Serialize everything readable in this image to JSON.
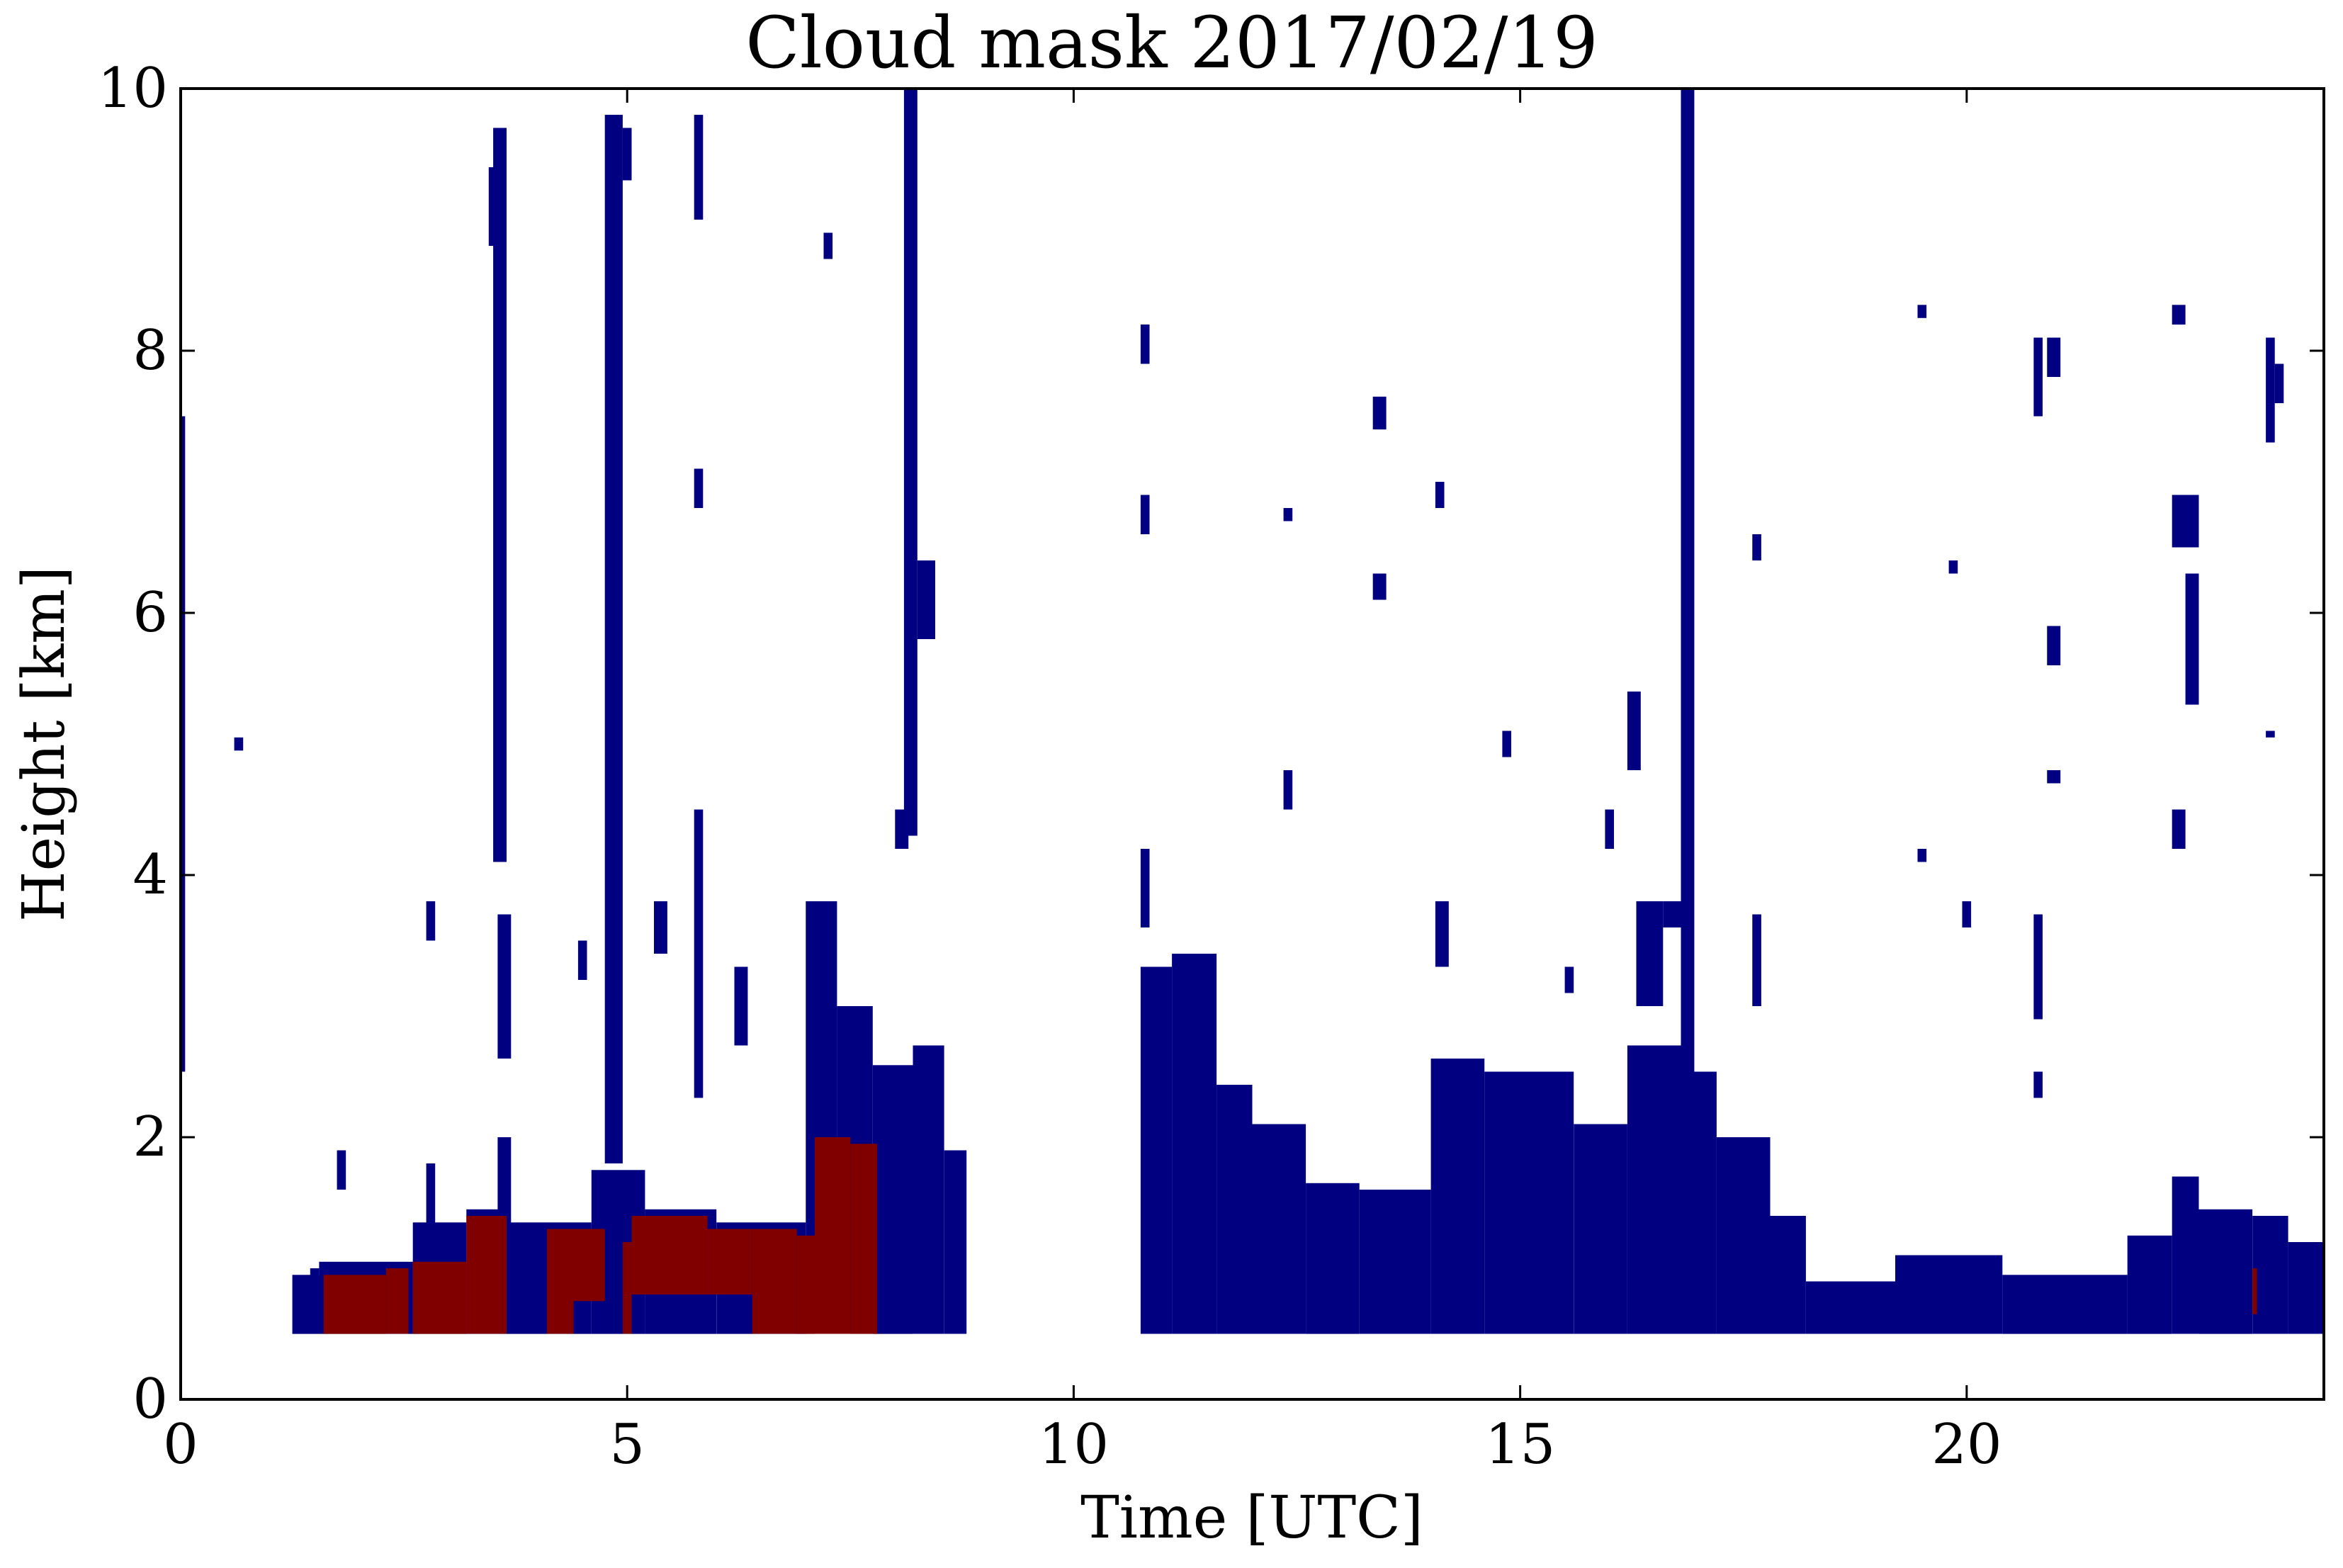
{
  "chart_data": {
    "type": "heatmap",
    "title": "Cloud mask 2017/02/19",
    "xlabel": "Time [UTC]",
    "ylabel": "Height [km]",
    "xlim": [
      0,
      24
    ],
    "ylim": [
      0,
      10
    ],
    "xticks": [
      0,
      5,
      10,
      15,
      20
    ],
    "yticks": [
      0,
      2,
      4,
      6,
      8,
      10
    ],
    "grid": false,
    "colors": {
      "ice_cloud": "#000080",
      "liquid_cloud": "#800000"
    },
    "series": [
      {
        "color_key": "ice_cloud",
        "segments": [
          [
            1.25,
            1.55,
            0.5,
            0.95
          ],
          [
            1.55,
            2.6,
            0.5,
            1.05
          ],
          [
            2.6,
            3.2,
            0.5,
            1.35
          ],
          [
            3.2,
            3.6,
            0.5,
            1.45
          ],
          [
            3.6,
            4.6,
            0.5,
            1.35
          ],
          [
            4.6,
            5.2,
            0.5,
            1.75
          ],
          [
            5.2,
            6.0,
            0.5,
            1.45
          ],
          [
            6.0,
            7.0,
            0.5,
            1.35
          ],
          [
            7.0,
            7.35,
            0.5,
            3.8
          ],
          [
            7.35,
            7.75,
            0.5,
            3.0
          ],
          [
            7.75,
            8.2,
            0.5,
            2.55
          ],
          [
            8.2,
            8.55,
            0.5,
            2.7
          ],
          [
            8.55,
            8.8,
            0.5,
            1.9
          ],
          [
            10.75,
            11.1,
            0.5,
            3.3
          ],
          [
            11.1,
            11.6,
            0.5,
            3.4
          ],
          [
            11.6,
            12.0,
            0.5,
            2.4
          ],
          [
            12.0,
            12.6,
            0.5,
            2.1
          ],
          [
            12.6,
            13.2,
            0.5,
            1.65
          ],
          [
            13.2,
            14.0,
            0.5,
            1.6
          ],
          [
            14.0,
            14.6,
            0.5,
            2.6
          ],
          [
            14.6,
            15.6,
            0.5,
            2.5
          ],
          [
            15.6,
            16.2,
            0.5,
            2.1
          ],
          [
            16.2,
            16.8,
            0.5,
            2.7
          ],
          [
            16.8,
            17.2,
            0.5,
            2.5
          ],
          [
            17.2,
            17.8,
            0.5,
            2.0
          ],
          [
            17.8,
            18.2,
            0.5,
            1.4
          ],
          [
            18.2,
            19.2,
            0.5,
            0.9
          ],
          [
            19.2,
            20.4,
            0.5,
            1.1
          ],
          [
            20.4,
            21.8,
            0.5,
            0.95
          ],
          [
            21.8,
            22.3,
            0.5,
            1.25
          ],
          [
            22.3,
            22.6,
            0.5,
            1.7
          ],
          [
            22.6,
            23.2,
            0.5,
            1.45
          ],
          [
            23.2,
            23.6,
            0.5,
            1.4
          ],
          [
            23.6,
            24.0,
            0.5,
            1.2
          ],
          [
            3.5,
            3.65,
            4.1,
            9.7
          ],
          [
            4.75,
            4.95,
            1.8,
            9.8
          ],
          [
            4.95,
            5.05,
            9.3,
            9.7
          ],
          [
            8.1,
            8.25,
            4.3,
            10.0
          ],
          [
            8.25,
            8.45,
            5.8,
            6.4
          ],
          [
            8.0,
            8.15,
            4.2,
            4.5
          ],
          [
            16.8,
            16.95,
            1.9,
            10.0
          ],
          [
            16.6,
            16.8,
            3.6,
            3.8
          ],
          [
            16.3,
            16.6,
            3.0,
            3.8
          ],
          [
            16.2,
            16.35,
            4.8,
            5.4
          ],
          [
            15.95,
            16.05,
            4.2,
            4.5
          ],
          [
            3.45,
            3.55,
            8.8,
            9.4
          ],
          [
            3.55,
            3.7,
            1.2,
            2.0
          ],
          [
            3.55,
            3.7,
            2.6,
            3.7
          ],
          [
            5.3,
            5.45,
            3.4,
            3.8
          ],
          [
            6.2,
            6.35,
            2.7,
            3.3
          ],
          [
            7.2,
            7.3,
            8.7,
            8.9
          ],
          [
            5.75,
            5.85,
            9.0,
            9.8
          ],
          [
            5.75,
            5.85,
            6.8,
            7.1
          ],
          [
            5.75,
            5.85,
            2.3,
            4.5
          ],
          [
            4.45,
            4.55,
            3.2,
            3.5
          ],
          [
            2.75,
            2.85,
            3.5,
            3.8
          ],
          [
            1.75,
            1.85,
            1.6,
            1.9
          ],
          [
            2.75,
            2.85,
            1.3,
            1.8
          ],
          [
            0.6,
            0.7,
            4.95,
            5.05
          ],
          [
            0.0,
            0.05,
            2.5,
            7.5
          ],
          [
            10.75,
            10.85,
            7.9,
            8.2
          ],
          [
            10.75,
            10.85,
            6.6,
            6.9
          ],
          [
            10.75,
            10.85,
            3.6,
            4.2
          ],
          [
            12.35,
            12.45,
            6.7,
            6.8
          ],
          [
            12.35,
            12.45,
            4.5,
            4.8
          ],
          [
            13.35,
            13.5,
            7.4,
            7.65
          ],
          [
            13.35,
            13.5,
            6.1,
            6.3
          ],
          [
            14.05,
            14.15,
            6.8,
            7.0
          ],
          [
            14.05,
            14.2,
            3.3,
            3.8
          ],
          [
            14.8,
            14.9,
            4.9,
            5.1
          ],
          [
            15.5,
            15.6,
            3.1,
            3.3
          ],
          [
            17.6,
            17.7,
            6.4,
            6.6
          ],
          [
            17.6,
            17.7,
            3.0,
            3.7
          ],
          [
            19.45,
            19.55,
            8.25,
            8.35
          ],
          [
            19.45,
            19.55,
            4.1,
            4.2
          ],
          [
            19.8,
            19.9,
            6.3,
            6.4
          ],
          [
            19.95,
            20.05,
            3.6,
            3.8
          ],
          [
            20.75,
            20.85,
            7.5,
            8.1
          ],
          [
            20.9,
            21.05,
            7.8,
            8.1
          ],
          [
            20.9,
            21.05,
            5.6,
            5.9
          ],
          [
            20.9,
            21.05,
            4.7,
            4.8
          ],
          [
            20.75,
            20.85,
            2.9,
            3.7
          ],
          [
            20.75,
            20.85,
            2.3,
            2.5
          ],
          [
            22.3,
            22.45,
            8.2,
            8.35
          ],
          [
            22.3,
            22.6,
            6.5,
            6.9
          ],
          [
            22.45,
            22.6,
            5.3,
            6.3
          ],
          [
            22.3,
            22.45,
            4.2,
            4.5
          ],
          [
            23.35,
            23.45,
            7.3,
            8.1
          ],
          [
            23.45,
            23.55,
            7.6,
            7.9
          ],
          [
            23.35,
            23.45,
            5.05,
            5.1
          ],
          [
            1.45,
            1.55,
            0.5,
            1.0
          ]
        ]
      },
      {
        "color_key": "liquid_cloud",
        "segments": [
          [
            1.6,
            2.3,
            0.5,
            0.95
          ],
          [
            2.3,
            2.55,
            0.5,
            1.0
          ],
          [
            2.6,
            3.2,
            0.5,
            1.05
          ],
          [
            3.2,
            3.65,
            0.5,
            1.4
          ],
          [
            4.1,
            4.4,
            0.5,
            1.3
          ],
          [
            4.4,
            4.75,
            0.75,
            1.3
          ],
          [
            4.95,
            5.05,
            0.5,
            1.2
          ],
          [
            5.05,
            5.9,
            0.8,
            1.4
          ],
          [
            5.9,
            6.4,
            0.8,
            1.3
          ],
          [
            6.4,
            6.9,
            0.5,
            1.3
          ],
          [
            6.9,
            7.1,
            0.5,
            1.25
          ],
          [
            7.1,
            7.5,
            0.5,
            2.0
          ],
          [
            7.5,
            7.8,
            0.5,
            1.95
          ],
          [
            23.2,
            23.25,
            0.65,
            1.0
          ]
        ]
      }
    ]
  }
}
